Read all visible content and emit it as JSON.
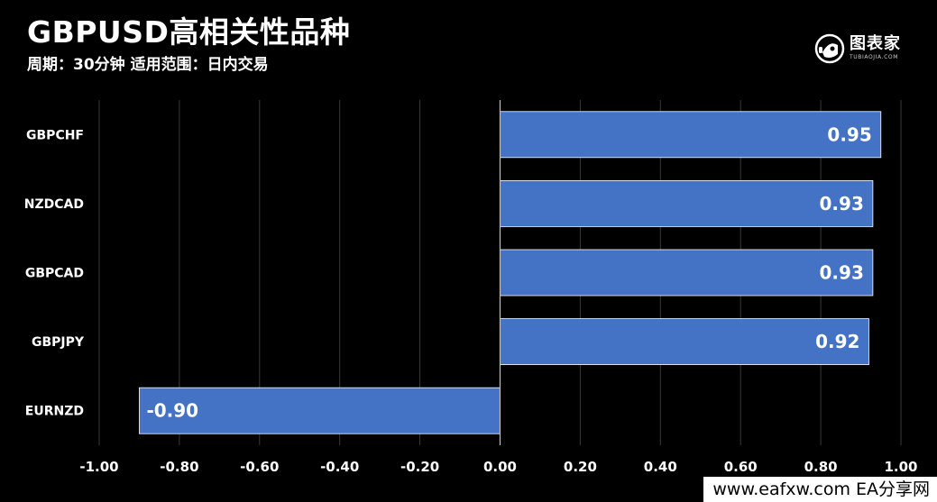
{
  "header": {
    "title": "GBPUSD高相关性品种",
    "subtitle": "周期：30分钟  适用范围：日内交易"
  },
  "logo": {
    "text": "图表家",
    "subtext": "TUBIAOJIA.COM",
    "icon": "robot-head-icon"
  },
  "watermark": "www.eafxw.com   EA分享网",
  "colors": {
    "background": "#000000",
    "bar": "#4472c4",
    "grid": "#3a3a3a",
    "text": "#ffffff"
  },
  "chart_data": {
    "type": "bar",
    "orientation": "horizontal",
    "categories": [
      "GBPCHF",
      "NZDCAD",
      "GBPCAD",
      "GBPJPY",
      "EURNZD"
    ],
    "values": [
      0.95,
      0.93,
      0.93,
      0.92,
      -0.9
    ],
    "value_labels": [
      "0.95",
      "0.93",
      "0.93",
      "0.92",
      "-0.90"
    ],
    "xlim": [
      -1.0,
      1.0
    ],
    "xticks": [
      -1.0,
      -0.8,
      -0.6,
      -0.4,
      -0.2,
      0.0,
      0.2,
      0.4,
      0.6,
      0.8,
      1.0
    ],
    "xtick_labels": [
      "-1.00",
      "-0.80",
      "-0.60",
      "-0.40",
      "-0.20",
      "0.00",
      "0.20",
      "0.40",
      "0.60",
      "0.80",
      "1.00"
    ],
    "grid": true,
    "legend": "none"
  }
}
